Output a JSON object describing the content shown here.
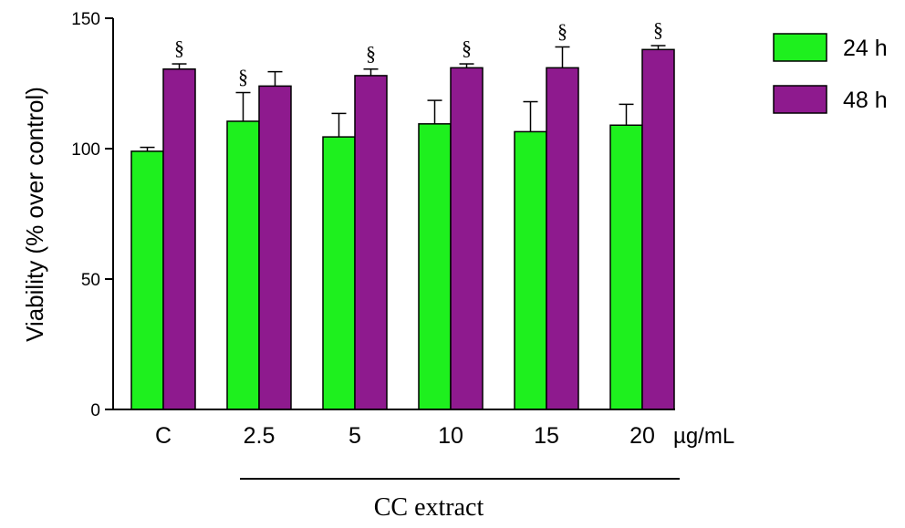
{
  "chart_data": {
    "type": "bar",
    "categories": [
      "C",
      "2.5",
      "5",
      "10",
      "15",
      "20"
    ],
    "x_unit": "µg/mL",
    "group_label": "CC extract",
    "ylabel": "Viability (% over control)",
    "ylim": [
      0,
      150
    ],
    "yticks": [
      0,
      50,
      100,
      150
    ],
    "series": [
      {
        "name": "24 h",
        "color": "#1ef01e",
        "values": [
          99,
          110.5,
          104.5,
          109.5,
          106.5,
          109
        ],
        "errors": [
          1.5,
          11,
          9,
          9,
          11.5,
          8
        ],
        "annotations": [
          "",
          "§",
          "",
          "",
          "",
          ""
        ]
      },
      {
        "name": "48 h",
        "color": "#8e1a8e",
        "values": [
          130.5,
          124,
          128,
          131,
          131,
          138
        ],
        "errors": [
          2,
          5.5,
          2.5,
          1.5,
          8,
          1.5
        ],
        "annotations": [
          "§",
          "",
          "§",
          "§",
          "§",
          "§"
        ]
      }
    ],
    "legend_position": "top-right",
    "grid": false
  }
}
